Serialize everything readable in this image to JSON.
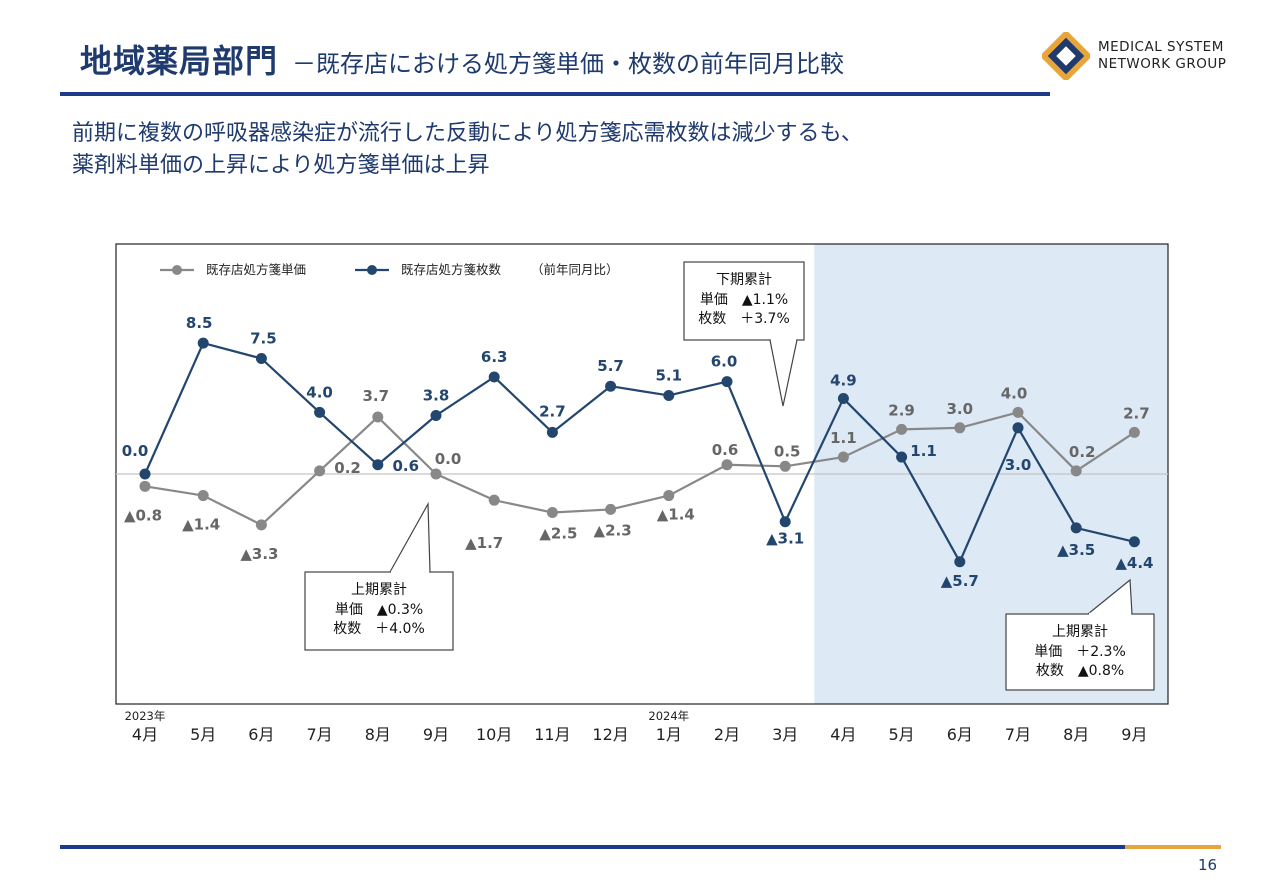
{
  "header": {
    "title": "地域薬局部門",
    "subtitle": "－既存店における処方箋単価・枚数の前年同月比較",
    "logo_line1": "MEDICAL SYSTEM",
    "logo_line2": "NETWORK GROUP"
  },
  "headline": {
    "line1": "前期に複数の呼吸器感染症が流行した反動により処方箋応需枚数は減少するも、",
    "line2": "薬剤料単価の上昇により処方箋単価は上昇"
  },
  "page_number": "16",
  "colors": {
    "navy": "#1e3a6e",
    "price_series": "#888888",
    "count_series": "#23466e",
    "highlight_bg": "#dde9f5",
    "accent": "#e8a53a"
  },
  "chart_data": {
    "type": "line",
    "categories": [
      "4月",
      "5月",
      "6月",
      "7月",
      "8月",
      "9月",
      "10月",
      "11月",
      "12月",
      "1月",
      "2月",
      "3月",
      "4月",
      "5月",
      "6月",
      "7月",
      "8月",
      "9月"
    ],
    "year_labels": [
      {
        "index": 0,
        "label": "2023年"
      },
      {
        "index": 9,
        "label": "2024年"
      }
    ],
    "series": [
      {
        "name": "既存店処方箋単価",
        "color": "#888888",
        "values": [
          -0.8,
          -1.4,
          -3.3,
          0.2,
          3.7,
          0.0,
          -1.7,
          -2.5,
          -2.3,
          -1.4,
          0.6,
          0.5,
          1.1,
          2.9,
          3.0,
          4.0,
          0.2,
          2.7
        ],
        "labels": [
          "▲0.8",
          "▲1.4",
          "▲3.3",
          "0.2",
          "3.7",
          "0.0",
          "▲1.7",
          "▲2.5",
          "▲2.3",
          "▲1.4",
          "0.6",
          "0.5",
          "1.1",
          "2.9",
          "3.0",
          "4.0",
          "0.2",
          "2.7"
        ]
      },
      {
        "name": "既存店処方箋枚数",
        "color": "#23466e",
        "values": [
          0.0,
          8.5,
          7.5,
          4.0,
          0.6,
          3.8,
          6.3,
          2.7,
          5.7,
          5.1,
          6.0,
          -3.1,
          4.9,
          1.1,
          -5.7,
          3.0,
          -3.5,
          -4.4
        ],
        "labels": [
          "0.0",
          "8.5",
          "7.5",
          "4.0",
          "0.6",
          "3.8",
          "6.3",
          "2.7",
          "5.7",
          "5.1",
          "6.0",
          "▲3.1",
          "4.9",
          "1.1",
          "▲5.7",
          "3.0",
          "▲3.5",
          "▲4.4"
        ]
      }
    ],
    "legend_note": "（前年同月比）",
    "legend_position": "top-left",
    "ylim": [
      -10,
      12
    ],
    "highlight_from_index": 12,
    "callouts": [
      {
        "title": "上期累計",
        "lines": [
          "単価　▲0.3%",
          "枚数　＋4.0%"
        ]
      },
      {
        "title": "下期累計",
        "lines": [
          "単価　▲1.1%",
          "枚数　＋3.7%"
        ]
      },
      {
        "title": "上期累計",
        "lines": [
          "単価　＋2.3%",
          "枚数　▲0.8%"
        ]
      }
    ]
  }
}
